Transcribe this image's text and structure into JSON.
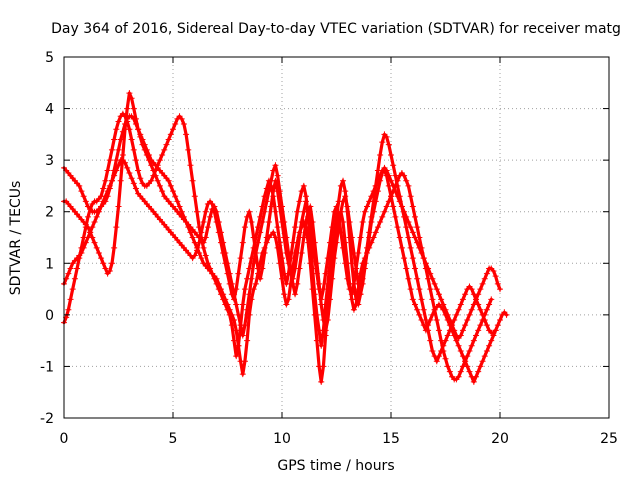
{
  "chart_data": {
    "type": "scatter",
    "title": "Day 364 of 2016, Sidereal Day-to-day VTEC variation (SDTVAR) for receiver matg",
    "xlabel": "GPS time / hours",
    "ylabel": "SDTVAR / TECUs",
    "xlim": [
      0,
      25
    ],
    "ylim": [
      -2,
      5
    ],
    "xticks": [
      0,
      5,
      10,
      15,
      20,
      25
    ],
    "yticks": [
      -2,
      -1,
      0,
      1,
      2,
      3,
      4,
      5
    ],
    "grid": true,
    "marker": "+",
    "color": "#ff0000",
    "x_step_hours": 0.1,
    "traces": [
      {
        "name": "trace-1",
        "x_start": 0.0,
        "y": [
          2.85,
          2.8,
          2.75,
          2.7,
          2.65,
          2.6,
          2.55,
          2.5,
          2.4,
          2.3,
          2.2,
          2.1,
          2.05,
          2.0,
          2.0,
          2.0,
          2.05,
          2.1,
          2.15,
          2.2,
          2.3,
          2.45,
          2.6,
          2.8,
          3.0,
          3.2,
          3.4,
          3.55,
          3.7,
          3.8,
          3.85,
          3.85,
          3.8,
          3.7,
          3.6,
          3.5,
          3.4,
          3.3,
          3.2,
          3.1,
          3.0,
          2.95,
          2.9,
          2.85,
          2.8,
          2.75,
          2.7,
          2.65,
          2.6,
          2.5,
          2.4,
          2.3,
          2.2,
          2.1,
          2.0,
          1.9,
          1.8,
          1.7,
          1.6,
          1.5,
          1.4,
          1.3,
          1.2,
          1.1,
          1.0,
          0.95,
          0.9,
          0.85,
          0.8,
          0.75,
          0.7,
          0.6,
          0.5,
          0.4,
          0.3,
          0.2,
          0.1,
          0.0,
          -0.1,
          -0.3,
          -0.6,
          -0.9,
          -1.15,
          -0.9,
          -0.5,
          0.0,
          0.3,
          0.5,
          0.6,
          0.8,
          1.0,
          1.2,
          1.3,
          1.4,
          1.5,
          1.55,
          1.6,
          1.5,
          1.3,
          1.0,
          0.7,
          0.4,
          0.2,
          0.3,
          0.6,
          0.9,
          1.2,
          1.4,
          1.6,
          1.7,
          1.8,
          1.7,
          1.4,
          1.0,
          0.5,
          0.0,
          -0.5,
          -1.0,
          -1.3,
          -1.0,
          -0.4,
          0.2,
          0.6,
          1.0,
          1.4,
          1.7,
          1.9,
          2.0,
          1.8,
          1.4,
          1.0,
          0.6,
          0.3,
          0.1,
          0.2,
          0.5,
          0.8,
          1.0,
          1.1,
          1.2,
          1.3,
          1.4,
          1.5,
          1.6,
          1.7,
          1.8,
          1.9,
          2.0,
          2.1,
          2.2,
          2.3,
          2.4,
          2.5,
          2.6,
          2.7,
          2.75,
          2.7,
          2.6,
          2.5,
          2.3,
          2.1,
          1.9,
          1.7,
          1.5,
          1.3,
          1.1,
          0.9,
          0.7,
          0.5,
          0.3,
          0.1,
          -0.1,
          -0.3,
          -0.5,
          -0.7,
          -0.85,
          -1.0,
          -1.1,
          -1.2,
          -1.25,
          -1.25,
          -1.2,
          -1.1,
          -1.0,
          -0.9,
          -0.8,
          -0.7,
          -0.6,
          -0.5,
          -0.4,
          -0.3,
          -0.2,
          -0.1,
          0.0,
          0.1,
          0.2,
          0.3
        ]
      },
      {
        "name": "trace-2",
        "x_start": 0.0,
        "y": [
          -0.15,
          -0.05,
          0.1,
          0.3,
          0.5,
          0.7,
          0.9,
          1.1,
          1.3,
          1.5,
          1.7,
          1.9,
          2.05,
          2.15,
          2.2,
          2.2,
          2.25,
          2.3,
          2.45,
          2.6,
          2.8,
          3.0,
          3.2,
          3.4,
          3.6,
          3.75,
          3.85,
          3.9,
          3.85,
          3.75,
          3.6,
          3.4,
          3.2,
          3.0,
          2.8,
          2.65,
          2.55,
          2.5,
          2.5,
          2.55,
          2.6,
          2.7,
          2.8,
          2.9,
          3.0,
          3.1,
          3.2,
          3.3,
          3.4,
          3.5,
          3.6,
          3.7,
          3.8,
          3.85,
          3.8,
          3.7,
          3.5,
          3.2,
          2.9,
          2.6,
          2.3,
          2.0,
          1.7,
          1.5,
          1.3,
          1.15,
          1.0,
          0.9,
          0.8,
          0.7,
          0.6,
          0.5,
          0.4,
          0.3,
          0.2,
          0.1,
          0.0,
          -0.2,
          -0.5,
          -0.8,
          -0.6,
          -0.2,
          0.2,
          0.5,
          0.7,
          0.9,
          1.1,
          1.3,
          1.5,
          1.7,
          1.9,
          2.1,
          2.3,
          2.45,
          2.6,
          2.5,
          2.3,
          2.0,
          1.7,
          1.4,
          1.1,
          0.8,
          0.6,
          0.8,
          1.1,
          1.4,
          1.7,
          2.0,
          2.2,
          2.4,
          2.5,
          2.3,
          1.9,
          1.4,
          0.9,
          0.4,
          0.0,
          -0.3,
          -0.6,
          -0.3,
          0.2,
          0.6,
          1.0,
          1.3,
          1.6,
          1.9,
          2.2,
          2.5,
          2.6,
          2.4,
          2.0,
          1.5,
          1.0,
          0.6,
          0.3,
          0.2,
          0.4,
          0.7,
          1.0,
          1.3,
          1.6,
          1.9,
          2.2,
          2.5,
          2.8,
          3.1,
          3.35,
          3.5,
          3.45,
          3.3,
          3.1,
          2.9,
          2.7,
          2.5,
          2.3,
          2.1,
          1.9,
          1.7,
          1.5,
          1.3,
          1.1,
          0.9,
          0.7,
          0.5,
          0.3,
          0.1,
          -0.1,
          -0.3,
          -0.5,
          -0.7,
          -0.8,
          -0.9,
          -0.8,
          -0.7,
          -0.6,
          -0.5,
          -0.4,
          -0.3,
          -0.2,
          -0.1,
          0.0,
          0.1,
          0.2,
          0.3,
          0.4,
          0.5,
          0.55,
          0.5,
          0.4,
          0.3,
          0.2,
          0.1,
          0.0,
          -0.1,
          -0.2,
          -0.3,
          -0.35,
          -0.35,
          -0.3
        ]
      },
      {
        "name": "trace-3",
        "x_start": 0.0,
        "y": [
          0.6,
          0.7,
          0.8,
          0.9,
          1.0,
          1.05,
          1.1,
          1.15,
          1.2,
          1.3,
          1.4,
          1.5,
          1.6,
          1.7,
          1.8,
          1.9,
          2.0,
          2.1,
          2.2,
          2.3,
          2.4,
          2.5,
          2.6,
          2.7,
          2.8,
          2.9,
          3.0,
          3.0,
          2.95,
          2.85,
          2.75,
          2.65,
          2.55,
          2.45,
          2.35,
          2.3,
          2.25,
          2.2,
          2.15,
          2.1,
          2.05,
          2.0,
          1.95,
          1.9,
          1.85,
          1.8,
          1.75,
          1.7,
          1.65,
          1.6,
          1.55,
          1.5,
          1.45,
          1.4,
          1.35,
          1.3,
          1.25,
          1.2,
          1.15,
          1.1,
          1.15,
          1.25,
          1.4,
          1.6,
          1.8,
          2.0,
          2.15,
          2.2,
          2.15,
          2.0,
          1.8,
          1.6,
          1.4,
          1.2,
          1.0,
          0.8,
          0.6,
          0.4,
          0.3,
          0.5,
          0.8,
          1.1,
          1.4,
          1.7,
          1.9,
          2.0,
          1.8,
          1.5,
          1.2,
          0.9,
          0.7,
          0.9,
          1.2,
          1.5,
          1.8,
          2.1,
          2.4,
          2.6,
          2.4,
          2.1,
          1.8,
          1.5,
          1.2,
          1.0,
          0.8,
          0.7,
          0.9,
          1.2,
          1.5,
          1.8,
          2.0,
          2.2,
          2.0,
          1.7,
          1.4,
          1.1,
          0.8,
          0.5,
          0.3,
          0.5,
          0.8,
          1.1,
          1.4,
          1.7,
          2.0,
          2.1,
          1.9,
          1.6,
          1.3,
          1.0,
          0.7,
          0.5,
          0.4,
          0.6,
          0.9,
          1.2,
          1.5,
          1.8,
          2.0,
          2.1,
          2.2,
          2.3,
          2.4,
          2.5,
          2.6,
          2.7,
          2.8,
          2.85,
          2.8,
          2.7,
          2.6,
          2.5,
          2.4,
          2.3,
          2.2,
          2.1,
          2.0,
          1.9,
          1.8,
          1.7,
          1.6,
          1.5,
          1.4,
          1.3,
          1.2,
          1.1,
          1.0,
          0.9,
          0.8,
          0.7,
          0.6,
          0.5,
          0.4,
          0.3,
          0.2,
          0.1,
          0.0,
          -0.1,
          -0.2,
          -0.3,
          -0.4,
          -0.45,
          -0.4,
          -0.3,
          -0.2,
          -0.1,
          0.0,
          0.1,
          0.2,
          0.3,
          0.4,
          0.5,
          0.6,
          0.7,
          0.8,
          0.9,
          0.9,
          0.85,
          0.75,
          0.6,
          0.5
        ]
      },
      {
        "name": "trace-4",
        "x_start": 0.0,
        "y": [
          2.2,
          2.2,
          2.15,
          2.1,
          2.05,
          2.0,
          1.95,
          1.9,
          1.85,
          1.8,
          1.75,
          1.7,
          1.6,
          1.5,
          1.4,
          1.3,
          1.2,
          1.1,
          1.0,
          0.9,
          0.8,
          0.85,
          1.0,
          1.3,
          1.7,
          2.1,
          2.6,
          3.1,
          3.6,
          4.0,
          4.3,
          4.2,
          4.0,
          3.8,
          3.6,
          3.45,
          3.3,
          3.2,
          3.1,
          3.0,
          2.9,
          2.8,
          2.7,
          2.6,
          2.5,
          2.4,
          2.3,
          2.25,
          2.2,
          2.15,
          2.1,
          2.05,
          2.0,
          1.95,
          1.9,
          1.85,
          1.8,
          1.75,
          1.7,
          1.65,
          1.6,
          1.55,
          1.5,
          1.45,
          1.4,
          1.5,
          1.7,
          1.9,
          2.05,
          2.1,
          2.0,
          1.8,
          1.6,
          1.4,
          1.2,
          1.0,
          0.8,
          0.6,
          0.4,
          0.2,
          0.0,
          -0.2,
          -0.4,
          -0.2,
          0.1,
          0.4,
          0.7,
          1.0,
          1.2,
          1.4,
          1.6,
          1.8,
          2.0,
          2.2,
          2.4,
          2.6,
          2.8,
          2.9,
          2.7,
          2.4,
          2.1,
          1.8,
          1.5,
          1.2,
          0.9,
          0.6,
          0.4,
          0.6,
          0.9,
          1.2,
          1.5,
          1.8,
          2.0,
          2.1,
          1.8,
          1.4,
          1.0,
          0.6,
          0.2,
          -0.1,
          -0.3,
          -0.1,
          0.3,
          0.7,
          1.1,
          1.4,
          1.7,
          2.0,
          2.2,
          2.3,
          2.1,
          1.8,
          1.5,
          1.2,
          0.9,
          0.6,
          0.4,
          0.6,
          0.9,
          1.2,
          1.5,
          1.8,
          2.0,
          2.2,
          2.4,
          2.6,
          2.75,
          2.8,
          2.7,
          2.5,
          2.3,
          2.1,
          1.9,
          1.7,
          1.5,
          1.3,
          1.1,
          0.9,
          0.7,
          0.5,
          0.3,
          0.2,
          0.1,
          0.0,
          -0.1,
          -0.2,
          -0.3,
          -0.2,
          -0.1,
          0.0,
          0.1,
          0.15,
          0.2,
          0.15,
          0.1,
          0.0,
          -0.1,
          -0.2,
          -0.3,
          -0.4,
          -0.5,
          -0.6,
          -0.7,
          -0.8,
          -0.9,
          -1.0,
          -1.1,
          -1.2,
          -1.3,
          -1.2,
          -1.1,
          -1.0,
          -0.9,
          -0.8,
          -0.7,
          -0.6,
          -0.5,
          -0.4,
          -0.3,
          -0.2,
          -0.1,
          0.0,
          0.05,
          0.0
        ]
      }
    ]
  }
}
